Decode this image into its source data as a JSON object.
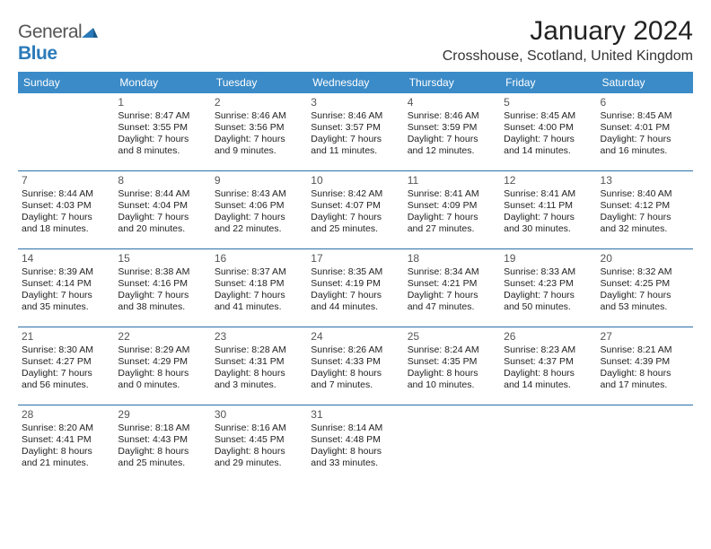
{
  "brand": {
    "name_part1": "General",
    "name_part2": "Blue",
    "icon_color": "#2a7ab9"
  },
  "header": {
    "month_title": "January 2024",
    "location": "Crosshouse, Scotland, United Kingdom"
  },
  "calendar": {
    "header_bg": "#3b8bc8",
    "divider_color": "#2a6fa8",
    "day_names": [
      "Sunday",
      "Monday",
      "Tuesday",
      "Wednesday",
      "Thursday",
      "Friday",
      "Saturday"
    ],
    "weeks": [
      [
        {
          "day": "",
          "sunrise": "",
          "sunset": "",
          "daylight1": "",
          "daylight2": ""
        },
        {
          "day": "1",
          "sunrise": "Sunrise: 8:47 AM",
          "sunset": "Sunset: 3:55 PM",
          "daylight1": "Daylight: 7 hours",
          "daylight2": "and 8 minutes."
        },
        {
          "day": "2",
          "sunrise": "Sunrise: 8:46 AM",
          "sunset": "Sunset: 3:56 PM",
          "daylight1": "Daylight: 7 hours",
          "daylight2": "and 9 minutes."
        },
        {
          "day": "3",
          "sunrise": "Sunrise: 8:46 AM",
          "sunset": "Sunset: 3:57 PM",
          "daylight1": "Daylight: 7 hours",
          "daylight2": "and 11 minutes."
        },
        {
          "day": "4",
          "sunrise": "Sunrise: 8:46 AM",
          "sunset": "Sunset: 3:59 PM",
          "daylight1": "Daylight: 7 hours",
          "daylight2": "and 12 minutes."
        },
        {
          "day": "5",
          "sunrise": "Sunrise: 8:45 AM",
          "sunset": "Sunset: 4:00 PM",
          "daylight1": "Daylight: 7 hours",
          "daylight2": "and 14 minutes."
        },
        {
          "day": "6",
          "sunrise": "Sunrise: 8:45 AM",
          "sunset": "Sunset: 4:01 PM",
          "daylight1": "Daylight: 7 hours",
          "daylight2": "and 16 minutes."
        }
      ],
      [
        {
          "day": "7",
          "sunrise": "Sunrise: 8:44 AM",
          "sunset": "Sunset: 4:03 PM",
          "daylight1": "Daylight: 7 hours",
          "daylight2": "and 18 minutes."
        },
        {
          "day": "8",
          "sunrise": "Sunrise: 8:44 AM",
          "sunset": "Sunset: 4:04 PM",
          "daylight1": "Daylight: 7 hours",
          "daylight2": "and 20 minutes."
        },
        {
          "day": "9",
          "sunrise": "Sunrise: 8:43 AM",
          "sunset": "Sunset: 4:06 PM",
          "daylight1": "Daylight: 7 hours",
          "daylight2": "and 22 minutes."
        },
        {
          "day": "10",
          "sunrise": "Sunrise: 8:42 AM",
          "sunset": "Sunset: 4:07 PM",
          "daylight1": "Daylight: 7 hours",
          "daylight2": "and 25 minutes."
        },
        {
          "day": "11",
          "sunrise": "Sunrise: 8:41 AM",
          "sunset": "Sunset: 4:09 PM",
          "daylight1": "Daylight: 7 hours",
          "daylight2": "and 27 minutes."
        },
        {
          "day": "12",
          "sunrise": "Sunrise: 8:41 AM",
          "sunset": "Sunset: 4:11 PM",
          "daylight1": "Daylight: 7 hours",
          "daylight2": "and 30 minutes."
        },
        {
          "day": "13",
          "sunrise": "Sunrise: 8:40 AM",
          "sunset": "Sunset: 4:12 PM",
          "daylight1": "Daylight: 7 hours",
          "daylight2": "and 32 minutes."
        }
      ],
      [
        {
          "day": "14",
          "sunrise": "Sunrise: 8:39 AM",
          "sunset": "Sunset: 4:14 PM",
          "daylight1": "Daylight: 7 hours",
          "daylight2": "and 35 minutes."
        },
        {
          "day": "15",
          "sunrise": "Sunrise: 8:38 AM",
          "sunset": "Sunset: 4:16 PM",
          "daylight1": "Daylight: 7 hours",
          "daylight2": "and 38 minutes."
        },
        {
          "day": "16",
          "sunrise": "Sunrise: 8:37 AM",
          "sunset": "Sunset: 4:18 PM",
          "daylight1": "Daylight: 7 hours",
          "daylight2": "and 41 minutes."
        },
        {
          "day": "17",
          "sunrise": "Sunrise: 8:35 AM",
          "sunset": "Sunset: 4:19 PM",
          "daylight1": "Daylight: 7 hours",
          "daylight2": "and 44 minutes."
        },
        {
          "day": "18",
          "sunrise": "Sunrise: 8:34 AM",
          "sunset": "Sunset: 4:21 PM",
          "daylight1": "Daylight: 7 hours",
          "daylight2": "and 47 minutes."
        },
        {
          "day": "19",
          "sunrise": "Sunrise: 8:33 AM",
          "sunset": "Sunset: 4:23 PM",
          "daylight1": "Daylight: 7 hours",
          "daylight2": "and 50 minutes."
        },
        {
          "day": "20",
          "sunrise": "Sunrise: 8:32 AM",
          "sunset": "Sunset: 4:25 PM",
          "daylight1": "Daylight: 7 hours",
          "daylight2": "and 53 minutes."
        }
      ],
      [
        {
          "day": "21",
          "sunrise": "Sunrise: 8:30 AM",
          "sunset": "Sunset: 4:27 PM",
          "daylight1": "Daylight: 7 hours",
          "daylight2": "and 56 minutes."
        },
        {
          "day": "22",
          "sunrise": "Sunrise: 8:29 AM",
          "sunset": "Sunset: 4:29 PM",
          "daylight1": "Daylight: 8 hours",
          "daylight2": "and 0 minutes."
        },
        {
          "day": "23",
          "sunrise": "Sunrise: 8:28 AM",
          "sunset": "Sunset: 4:31 PM",
          "daylight1": "Daylight: 8 hours",
          "daylight2": "and 3 minutes."
        },
        {
          "day": "24",
          "sunrise": "Sunrise: 8:26 AM",
          "sunset": "Sunset: 4:33 PM",
          "daylight1": "Daylight: 8 hours",
          "daylight2": "and 7 minutes."
        },
        {
          "day": "25",
          "sunrise": "Sunrise: 8:24 AM",
          "sunset": "Sunset: 4:35 PM",
          "daylight1": "Daylight: 8 hours",
          "daylight2": "and 10 minutes."
        },
        {
          "day": "26",
          "sunrise": "Sunrise: 8:23 AM",
          "sunset": "Sunset: 4:37 PM",
          "daylight1": "Daylight: 8 hours",
          "daylight2": "and 14 minutes."
        },
        {
          "day": "27",
          "sunrise": "Sunrise: 8:21 AM",
          "sunset": "Sunset: 4:39 PM",
          "daylight1": "Daylight: 8 hours",
          "daylight2": "and 17 minutes."
        }
      ],
      [
        {
          "day": "28",
          "sunrise": "Sunrise: 8:20 AM",
          "sunset": "Sunset: 4:41 PM",
          "daylight1": "Daylight: 8 hours",
          "daylight2": "and 21 minutes."
        },
        {
          "day": "29",
          "sunrise": "Sunrise: 8:18 AM",
          "sunset": "Sunset: 4:43 PM",
          "daylight1": "Daylight: 8 hours",
          "daylight2": "and 25 minutes."
        },
        {
          "day": "30",
          "sunrise": "Sunrise: 8:16 AM",
          "sunset": "Sunset: 4:45 PM",
          "daylight1": "Daylight: 8 hours",
          "daylight2": "and 29 minutes."
        },
        {
          "day": "31",
          "sunrise": "Sunrise: 8:14 AM",
          "sunset": "Sunset: 4:48 PM",
          "daylight1": "Daylight: 8 hours",
          "daylight2": "and 33 minutes."
        },
        {
          "day": "",
          "sunrise": "",
          "sunset": "",
          "daylight1": "",
          "daylight2": ""
        },
        {
          "day": "",
          "sunrise": "",
          "sunset": "",
          "daylight1": "",
          "daylight2": ""
        },
        {
          "day": "",
          "sunrise": "",
          "sunset": "",
          "daylight1": "",
          "daylight2": ""
        }
      ]
    ]
  }
}
